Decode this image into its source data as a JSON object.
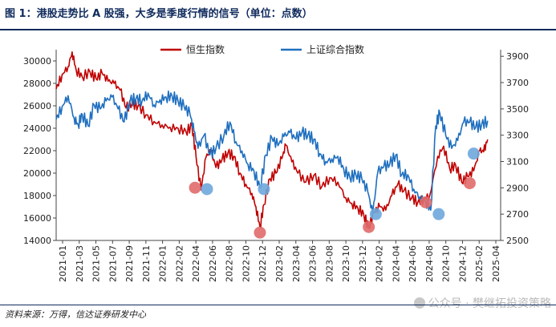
{
  "title": "图 1：港股走势比 A 股强，大多是季度行情的信号（单位：点数）",
  "source": "资料来源：万得，信达证券研发中心",
  "watermark": "公众号 · 樊继拓投资策略",
  "colors": {
    "hsi": "#c00000",
    "sse": "#1f6fbf",
    "hsi_marker": "#e06a6a",
    "sse_marker": "#6ea7dc",
    "accent": "#0f2a5c"
  },
  "chart_data": {
    "type": "line",
    "title": "港股走势比 A 股强，大多是季度行情的信号",
    "x_ticks": [
      "2021-01",
      "2021-03",
      "2021-05",
      "2021-07",
      "2021-09",
      "2021-11",
      "2022-01",
      "2022-02",
      "2022-04",
      "2022-06",
      "2022-08",
      "2022-10",
      "2022-12",
      "2023-02",
      "2023-04",
      "2023-06",
      "2023-08",
      "2023-10",
      "2023-12",
      "2024-02",
      "2024-04",
      "2024-06",
      "2024-08",
      "2024-10",
      "2024-12",
      "2025-02",
      "2025-04"
    ],
    "y_left": {
      "label": "恒生指数",
      "ticks": [
        14000,
        16000,
        18000,
        20000,
        22000,
        24000,
        26000,
        28000,
        30000
      ],
      "ylim": [
        14000,
        31000
      ]
    },
    "y_right": {
      "label": "上证综合指数",
      "ticks": [
        2500,
        2700,
        2900,
        3100,
        3300,
        3500,
        3700,
        3900
      ],
      "ylim": [
        2500,
        3950
      ]
    },
    "legend": [
      "恒生指数",
      "上证综合指数"
    ],
    "series": [
      {
        "name": "恒生指数",
        "axis": "left",
        "points": [
          [
            0,
            27500
          ],
          [
            0.6,
            28800
          ],
          [
            1.2,
            29500
          ],
          [
            1.6,
            30800
          ],
          [
            2.0,
            29200
          ],
          [
            2.6,
            28600
          ],
          [
            3.4,
            29000
          ],
          [
            4.0,
            28400
          ],
          [
            4.6,
            28900
          ],
          [
            5.2,
            28200
          ],
          [
            5.8,
            28000
          ],
          [
            6.4,
            27400
          ],
          [
            7.0,
            25800
          ],
          [
            7.6,
            26200
          ],
          [
            8.2,
            26000
          ],
          [
            9.0,
            25200
          ],
          [
            9.8,
            24600
          ],
          [
            10.6,
            24300
          ],
          [
            11.4,
            24100
          ],
          [
            12.2,
            24000
          ],
          [
            13.0,
            23700
          ],
          [
            13.6,
            24200
          ],
          [
            14.0,
            21500
          ],
          [
            14.5,
            18500
          ],
          [
            15.0,
            21400
          ],
          [
            15.5,
            22000
          ],
          [
            16.0,
            20500
          ],
          [
            16.6,
            21200
          ],
          [
            17.2,
            21800
          ],
          [
            17.8,
            21500
          ],
          [
            18.4,
            20000
          ],
          [
            19.0,
            19000
          ],
          [
            19.6,
            18200
          ],
          [
            20.0,
            17000
          ],
          [
            20.4,
            15200
          ],
          [
            20.8,
            17200
          ],
          [
            21.4,
            19500
          ],
          [
            22.0,
            20000
          ],
          [
            22.6,
            21300
          ],
          [
            23.0,
            22500
          ],
          [
            23.6,
            21000
          ],
          [
            24.2,
            20000
          ],
          [
            25.0,
            19200
          ],
          [
            25.8,
            19800
          ],
          [
            26.6,
            18800
          ],
          [
            27.4,
            19600
          ],
          [
            28.2,
            19200
          ],
          [
            29.0,
            17800
          ],
          [
            29.6,
            17300
          ],
          [
            30.2,
            16900
          ],
          [
            30.8,
            16300
          ],
          [
            31.3,
            15100
          ],
          [
            31.8,
            16500
          ],
          [
            32.4,
            17000
          ],
          [
            33.0,
            16700
          ],
          [
            33.6,
            18000
          ],
          [
            34.2,
            19000
          ],
          [
            34.8,
            18400
          ],
          [
            35.6,
            17800
          ],
          [
            36.2,
            17400
          ],
          [
            36.8,
            17700
          ],
          [
            37.4,
            18000
          ],
          [
            38.2,
            21500
          ],
          [
            38.8,
            22400
          ],
          [
            39.4,
            20400
          ],
          [
            40.0,
            20700
          ],
          [
            40.6,
            19200
          ],
          [
            41.2,
            19700
          ],
          [
            41.8,
            20200
          ],
          [
            42.4,
            22000
          ],
          [
            42.8,
            21900
          ],
          [
            43.2,
            23000
          ]
        ]
      },
      {
        "name": "上证综合指数",
        "axis": "right",
        "points": [
          [
            0,
            3420
          ],
          [
            0.6,
            3520
          ],
          [
            1.2,
            3600
          ],
          [
            1.8,
            3430
          ],
          [
            2.2,
            3380
          ],
          [
            2.6,
            3460
          ],
          [
            3.2,
            3370
          ],
          [
            3.8,
            3530
          ],
          [
            4.4,
            3500
          ],
          [
            5.0,
            3560
          ],
          [
            5.6,
            3590
          ],
          [
            6.2,
            3500
          ],
          [
            6.8,
            3400
          ],
          [
            7.4,
            3560
          ],
          [
            8.0,
            3580
          ],
          [
            8.6,
            3560
          ],
          [
            9.2,
            3620
          ],
          [
            9.8,
            3530
          ],
          [
            10.4,
            3570
          ],
          [
            11.0,
            3590
          ],
          [
            11.6,
            3600
          ],
          [
            12.2,
            3560
          ],
          [
            12.8,
            3520
          ],
          [
            13.4,
            3460
          ],
          [
            13.8,
            3330
          ],
          [
            14.2,
            3200
          ],
          [
            14.8,
            3300
          ],
          [
            15.4,
            3150
          ],
          [
            16.0,
            3200
          ],
          [
            16.8,
            3300
          ],
          [
            17.4,
            3400
          ],
          [
            18.0,
            3250
          ],
          [
            18.6,
            3180
          ],
          [
            19.2,
            3080
          ],
          [
            19.8,
            3030
          ],
          [
            20.4,
            2900
          ],
          [
            21.0,
            3150
          ],
          [
            21.6,
            3280
          ],
          [
            22.2,
            3220
          ],
          [
            22.8,
            3290
          ],
          [
            23.4,
            3320
          ],
          [
            24.0,
            3270
          ],
          [
            24.6,
            3320
          ],
          [
            25.2,
            3300
          ],
          [
            25.8,
            3270
          ],
          [
            26.4,
            3160
          ],
          [
            27.0,
            3100
          ],
          [
            27.6,
            3120
          ],
          [
            28.2,
            3140
          ],
          [
            28.8,
            3040
          ],
          [
            29.4,
            2980
          ],
          [
            30.0,
            3000
          ],
          [
            30.6,
            2970
          ],
          [
            31.2,
            2870
          ],
          [
            31.7,
            2700
          ],
          [
            32.2,
            3020
          ],
          [
            32.8,
            3060
          ],
          [
            33.4,
            3080
          ],
          [
            34.0,
            3150
          ],
          [
            34.6,
            3000
          ],
          [
            35.2,
            3000
          ],
          [
            35.8,
            2890
          ],
          [
            36.4,
            2830
          ],
          [
            37.0,
            2800
          ],
          [
            37.5,
            2730
          ],
          [
            38.0,
            3370
          ],
          [
            38.4,
            3470
          ],
          [
            39.0,
            3300
          ],
          [
            39.6,
            3200
          ],
          [
            40.2,
            3260
          ],
          [
            40.8,
            3400
          ],
          [
            41.4,
            3400
          ],
          [
            42.0,
            3360
          ],
          [
            42.6,
            3380
          ],
          [
            43.2,
            3410
          ]
        ]
      }
    ],
    "markers": [
      {
        "series": "恒生指数",
        "x": 13.9,
        "y": 18700
      },
      {
        "series": "恒生指数",
        "x": 20.4,
        "y": 14700
      },
      {
        "series": "恒生指数",
        "x": 31.3,
        "y": 15200
      },
      {
        "series": "恒生指数",
        "x": 37.0,
        "y": 17400
      },
      {
        "series": "恒生指数",
        "x": 41.4,
        "y": 19100
      },
      {
        "series": "上证综合指数",
        "x": 15.1,
        "y": 2890
      },
      {
        "series": "上证综合指数",
        "x": 20.8,
        "y": 2890
      },
      {
        "series": "上证综合指数",
        "x": 32.0,
        "y": 2700
      },
      {
        "series": "上证综合指数",
        "x": 38.3,
        "y": 2700
      },
      {
        "series": "上证综合指数",
        "x": 41.8,
        "y": 3160
      }
    ],
    "x_range": [
      0,
      44.5
    ]
  }
}
